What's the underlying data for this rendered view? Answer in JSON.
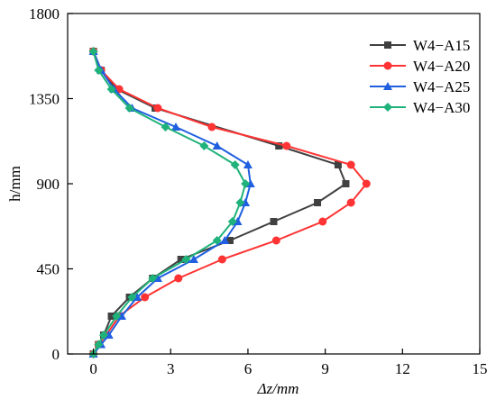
{
  "chart_data": {
    "type": "line",
    "xlabel": "Δz/mm",
    "ylabel": "h/mm",
    "xlim": [
      -1,
      15
    ],
    "ylim": [
      0,
      1800
    ],
    "xticks": [
      0,
      3,
      6,
      9,
      12,
      15
    ],
    "yticks": [
      0,
      450,
      900,
      1350,
      1800
    ],
    "xtick_labels": [
      "0",
      "3",
      "6",
      "9",
      "12",
      "15"
    ],
    "ytick_labels": [
      "0",
      "450",
      "900",
      "1350",
      "1800"
    ],
    "grid": false,
    "legend_position": "top-right",
    "series": [
      {
        "name": "W4−A15",
        "color": "#404040",
        "marker": "square",
        "points": [
          [
            0.0,
            1600
          ],
          [
            0.3,
            1500
          ],
          [
            0.9,
            1400
          ],
          [
            2.4,
            1300
          ],
          [
            7.2,
            1100
          ],
          [
            9.5,
            1000
          ],
          [
            9.8,
            900
          ],
          [
            8.7,
            800
          ],
          [
            7.0,
            700
          ],
          [
            5.3,
            600
          ],
          [
            3.4,
            500
          ],
          [
            2.3,
            400
          ],
          [
            1.4,
            300
          ],
          [
            0.7,
            200
          ],
          [
            0.4,
            100
          ],
          [
            0.2,
            50
          ],
          [
            0.0,
            0
          ]
        ]
      },
      {
        "name": "W4−A20",
        "color": "#ff3333",
        "marker": "circle",
        "points": [
          [
            0.0,
            1600
          ],
          [
            0.3,
            1500
          ],
          [
            1.0,
            1400
          ],
          [
            2.5,
            1300
          ],
          [
            4.6,
            1200
          ],
          [
            7.5,
            1100
          ],
          [
            10.0,
            1000
          ],
          [
            10.6,
            900
          ],
          [
            10.0,
            800
          ],
          [
            8.9,
            700
          ],
          [
            7.1,
            600
          ],
          [
            5.0,
            500
          ],
          [
            3.3,
            400
          ],
          [
            2.0,
            300
          ],
          [
            1.0,
            200
          ],
          [
            0.5,
            100
          ],
          [
            0.2,
            50
          ],
          [
            0.0,
            0
          ]
        ]
      },
      {
        "name": "W4−A25",
        "color": "#1f5fe0",
        "marker": "triangle",
        "points": [
          [
            0.0,
            1600
          ],
          [
            0.3,
            1500
          ],
          [
            0.8,
            1400
          ],
          [
            1.5,
            1300
          ],
          [
            3.2,
            1200
          ],
          [
            4.8,
            1100
          ],
          [
            6.0,
            1000
          ],
          [
            6.1,
            900
          ],
          [
            5.9,
            800
          ],
          [
            5.6,
            700
          ],
          [
            5.1,
            600
          ],
          [
            3.9,
            500
          ],
          [
            2.5,
            400
          ],
          [
            1.7,
            300
          ],
          [
            1.1,
            200
          ],
          [
            0.6,
            100
          ],
          [
            0.3,
            50
          ],
          [
            0.0,
            0
          ]
        ]
      },
      {
        "name": "W4−A30",
        "color": "#1fb27a",
        "marker": "diamond",
        "points": [
          [
            0.0,
            1600
          ],
          [
            0.2,
            1500
          ],
          [
            0.7,
            1400
          ],
          [
            1.4,
            1300
          ],
          [
            2.8,
            1200
          ],
          [
            4.3,
            1100
          ],
          [
            5.5,
            1000
          ],
          [
            5.9,
            900
          ],
          [
            5.7,
            800
          ],
          [
            5.4,
            700
          ],
          [
            4.8,
            600
          ],
          [
            3.6,
            500
          ],
          [
            2.3,
            400
          ],
          [
            1.5,
            300
          ],
          [
            0.9,
            200
          ],
          [
            0.4,
            100
          ],
          [
            0.2,
            50
          ],
          [
            0.0,
            0
          ]
        ]
      }
    ]
  }
}
